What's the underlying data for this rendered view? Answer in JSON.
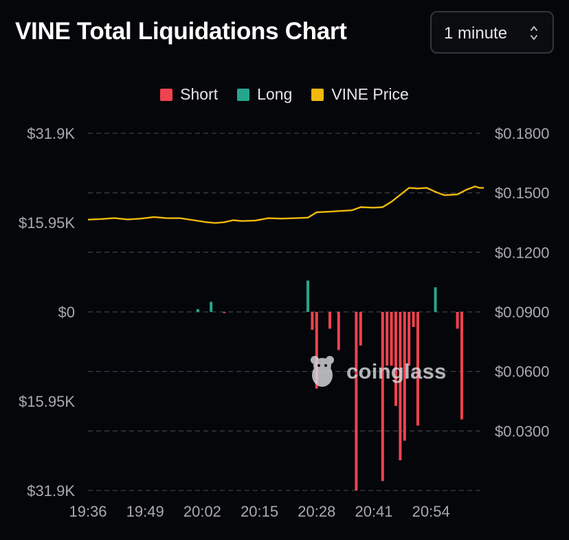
{
  "header": {
    "title": "VINE Total Liquidations Chart",
    "interval_label": "1 minute"
  },
  "legend": [
    {
      "name": "Short",
      "color": "#f0424f"
    },
    {
      "name": "Long",
      "color": "#26a58e"
    },
    {
      "name": "VINE Price",
      "color": "#f0b90b"
    }
  ],
  "watermark": "coinglass",
  "chart_data": {
    "type": "bar",
    "title": "VINE Total Liquidations Chart",
    "x_tick_labels": [
      "19:36",
      "19:49",
      "20:02",
      "20:15",
      "20:28",
      "20:41",
      "20:54"
    ],
    "x_range_minutes": [
      0,
      90
    ],
    "left_axis": {
      "tick_labels": [
        "$31.9K",
        "$15.95K",
        "$0",
        "$15.95K",
        "$31.9K"
      ],
      "range": [
        -31900,
        31900
      ]
    },
    "right_axis": {
      "tick_labels": [
        "$0.1800",
        "$0.1500",
        "$0.1200",
        "$0.0900",
        "$0.0600",
        "$0.0300"
      ],
      "range": [
        0.0,
        0.18
      ]
    },
    "grid": true,
    "legend_position": "top-center",
    "series": [
      {
        "name": "Long",
        "type": "bar",
        "color": "#26a58e",
        "points": [
          {
            "t": 25,
            "v": 500
          },
          {
            "t": 28,
            "v": 1800
          },
          {
            "t": 50,
            "v": 5600
          },
          {
            "t": 79,
            "v": 4400
          }
        ]
      },
      {
        "name": "Short",
        "type": "bar",
        "color": "#f0424f",
        "points": [
          {
            "t": 31,
            "v": 200
          },
          {
            "t": 51,
            "v": 3200
          },
          {
            "t": 52,
            "v": 13700
          },
          {
            "t": 55,
            "v": 3000
          },
          {
            "t": 57,
            "v": 6800
          },
          {
            "t": 61,
            "v": 31900
          },
          {
            "t": 62,
            "v": 6000
          },
          {
            "t": 67,
            "v": 30200
          },
          {
            "t": 68,
            "v": 9600
          },
          {
            "t": 69,
            "v": 9600
          },
          {
            "t": 70,
            "v": 16800
          },
          {
            "t": 71,
            "v": 26500
          },
          {
            "t": 72,
            "v": 23000
          },
          {
            "t": 73,
            "v": 9600
          },
          {
            "t": 74,
            "v": 2700
          },
          {
            "t": 75,
            "v": 20300
          },
          {
            "t": 84,
            "v": 3000
          },
          {
            "t": 85,
            "v": 19200
          }
        ]
      },
      {
        "name": "VINE Price",
        "type": "line",
        "axis": "right",
        "color": "#f0b90b",
        "points": [
          {
            "t": 0,
            "v": 0.1365
          },
          {
            "t": 3,
            "v": 0.1368
          },
          {
            "t": 6,
            "v": 0.1373
          },
          {
            "t": 9,
            "v": 0.1366
          },
          {
            "t": 12,
            "v": 0.137
          },
          {
            "t": 15,
            "v": 0.1378
          },
          {
            "t": 18,
            "v": 0.1372
          },
          {
            "t": 21,
            "v": 0.1372
          },
          {
            "t": 24,
            "v": 0.1362
          },
          {
            "t": 27,
            "v": 0.1352
          },
          {
            "t": 29,
            "v": 0.1348
          },
          {
            "t": 31,
            "v": 0.1352
          },
          {
            "t": 33,
            "v": 0.1362
          },
          {
            "t": 35,
            "v": 0.1358
          },
          {
            "t": 38,
            "v": 0.136
          },
          {
            "t": 41,
            "v": 0.1372
          },
          {
            "t": 44,
            "v": 0.137
          },
          {
            "t": 47,
            "v": 0.1372
          },
          {
            "t": 50,
            "v": 0.1375
          },
          {
            "t": 52,
            "v": 0.1402
          },
          {
            "t": 55,
            "v": 0.1405
          },
          {
            "t": 57,
            "v": 0.1408
          },
          {
            "t": 60,
            "v": 0.1412
          },
          {
            "t": 62,
            "v": 0.1428
          },
          {
            "t": 65,
            "v": 0.1425
          },
          {
            "t": 67,
            "v": 0.1428
          },
          {
            "t": 69,
            "v": 0.1455
          },
          {
            "t": 71,
            "v": 0.149
          },
          {
            "t": 73,
            "v": 0.1525
          },
          {
            "t": 75,
            "v": 0.1522
          },
          {
            "t": 77,
            "v": 0.1525
          },
          {
            "t": 79,
            "v": 0.1505
          },
          {
            "t": 81,
            "v": 0.1488
          },
          {
            "t": 84,
            "v": 0.1492
          },
          {
            "t": 86,
            "v": 0.1515
          },
          {
            "t": 88,
            "v": 0.1532
          },
          {
            "t": 89,
            "v": 0.1525
          },
          {
            "t": 90,
            "v": 0.1525
          }
        ]
      }
    ]
  }
}
